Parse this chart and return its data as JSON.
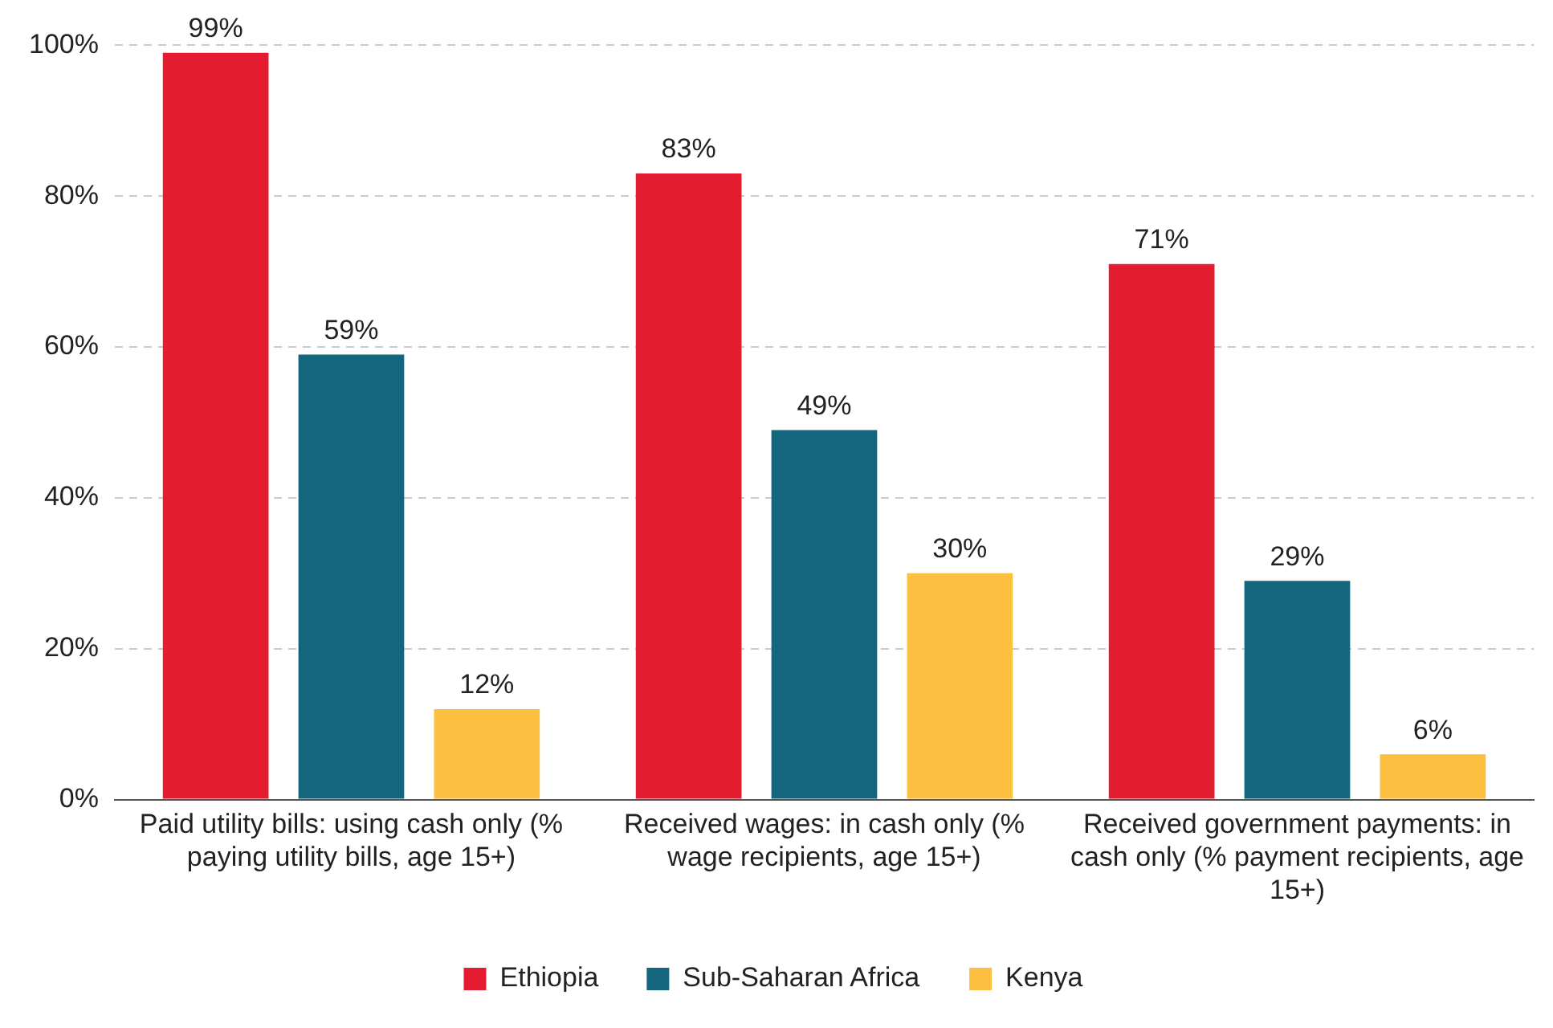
{
  "chart_data": {
    "type": "bar",
    "categories": [
      "Paid utility bills: using cash only (% paying utility bills, age 15+)",
      "Received wages: in cash only (% wage recipients, age 15+)",
      "Received government payments: in cash only (% payment recipients, age 15+)"
    ],
    "series": [
      {
        "name": "Ethiopia",
        "color": "#e31d2f",
        "values": [
          99,
          83,
          71
        ],
        "value_labels": [
          "99%",
          "83%",
          "71%"
        ]
      },
      {
        "name": "Sub-Saharan Africa",
        "color": "#13667e",
        "values": [
          59,
          49,
          29
        ],
        "value_labels": [
          "59%",
          "49%",
          "29%"
        ]
      },
      {
        "name": "Kenya",
        "color": "#fdbf3f",
        "values": [
          12,
          30,
          6
        ],
        "value_labels": [
          "12%",
          "30%",
          "6%"
        ]
      }
    ],
    "ylim": [
      0,
      100
    ],
    "yticks": [
      {
        "value": 0,
        "label": "0%"
      },
      {
        "value": 20,
        "label": "20%"
      },
      {
        "value": 40,
        "label": "40%"
      },
      {
        "value": 60,
        "label": "60%"
      },
      {
        "value": 80,
        "label": "80%"
      },
      {
        "value": 100,
        "label": "100%"
      }
    ],
    "grid": "y",
    "legend": "bottom"
  }
}
